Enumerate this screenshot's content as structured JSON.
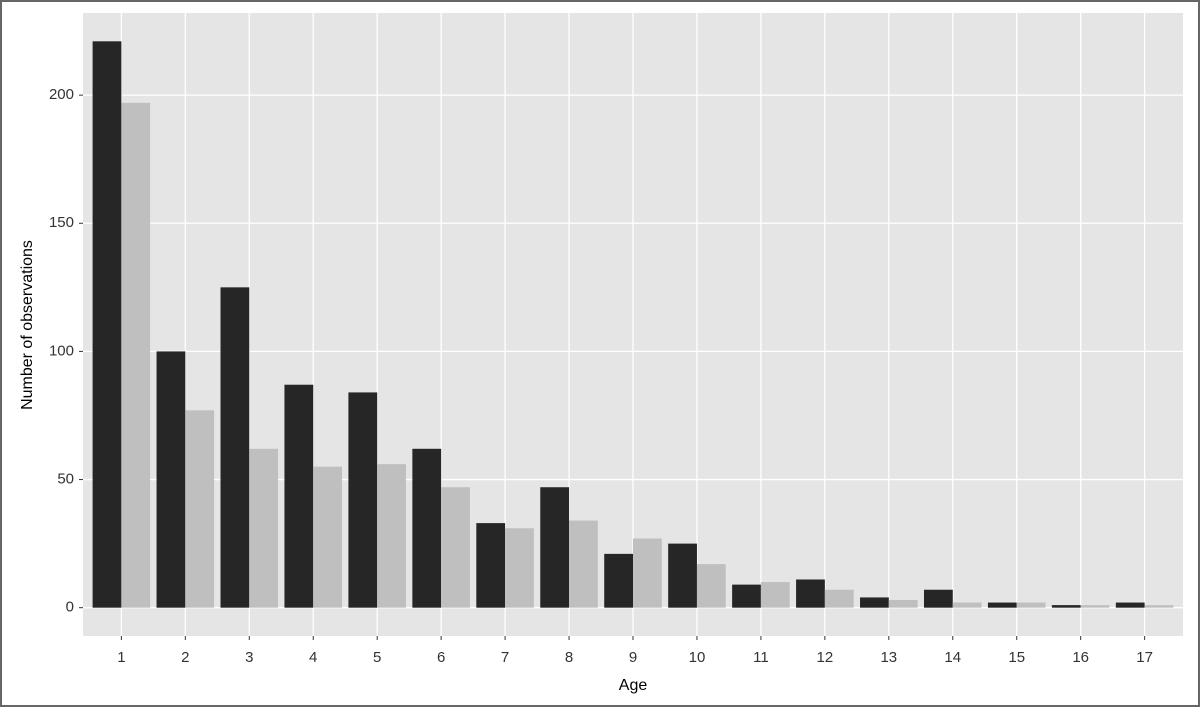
{
  "chart_data": {
    "type": "bar",
    "x_label": "Age",
    "y_label": "Number of observations",
    "categories": [
      "1",
      "2",
      "3",
      "4",
      "5",
      "6",
      "7",
      "8",
      "9",
      "10",
      "11",
      "12",
      "13",
      "14",
      "15",
      "16",
      "17"
    ],
    "series": [
      {
        "color": "#262626",
        "values": [
          221,
          100,
          125,
          87,
          84,
          62,
          33,
          47,
          21,
          25,
          9,
          11,
          4,
          7,
          2,
          1,
          2
        ]
      },
      {
        "color": "#bfbfbf",
        "values": [
          197,
          77,
          62,
          55,
          56,
          47,
          31,
          34,
          27,
          17,
          10,
          7,
          3,
          2,
          2,
          1,
          1
        ]
      }
    ],
    "ylim": [
      -11.05,
      232.05
    ],
    "yticks": [
      0,
      50,
      100,
      150,
      200
    ],
    "grid": true,
    "panel_color": "#e5e5e5"
  }
}
